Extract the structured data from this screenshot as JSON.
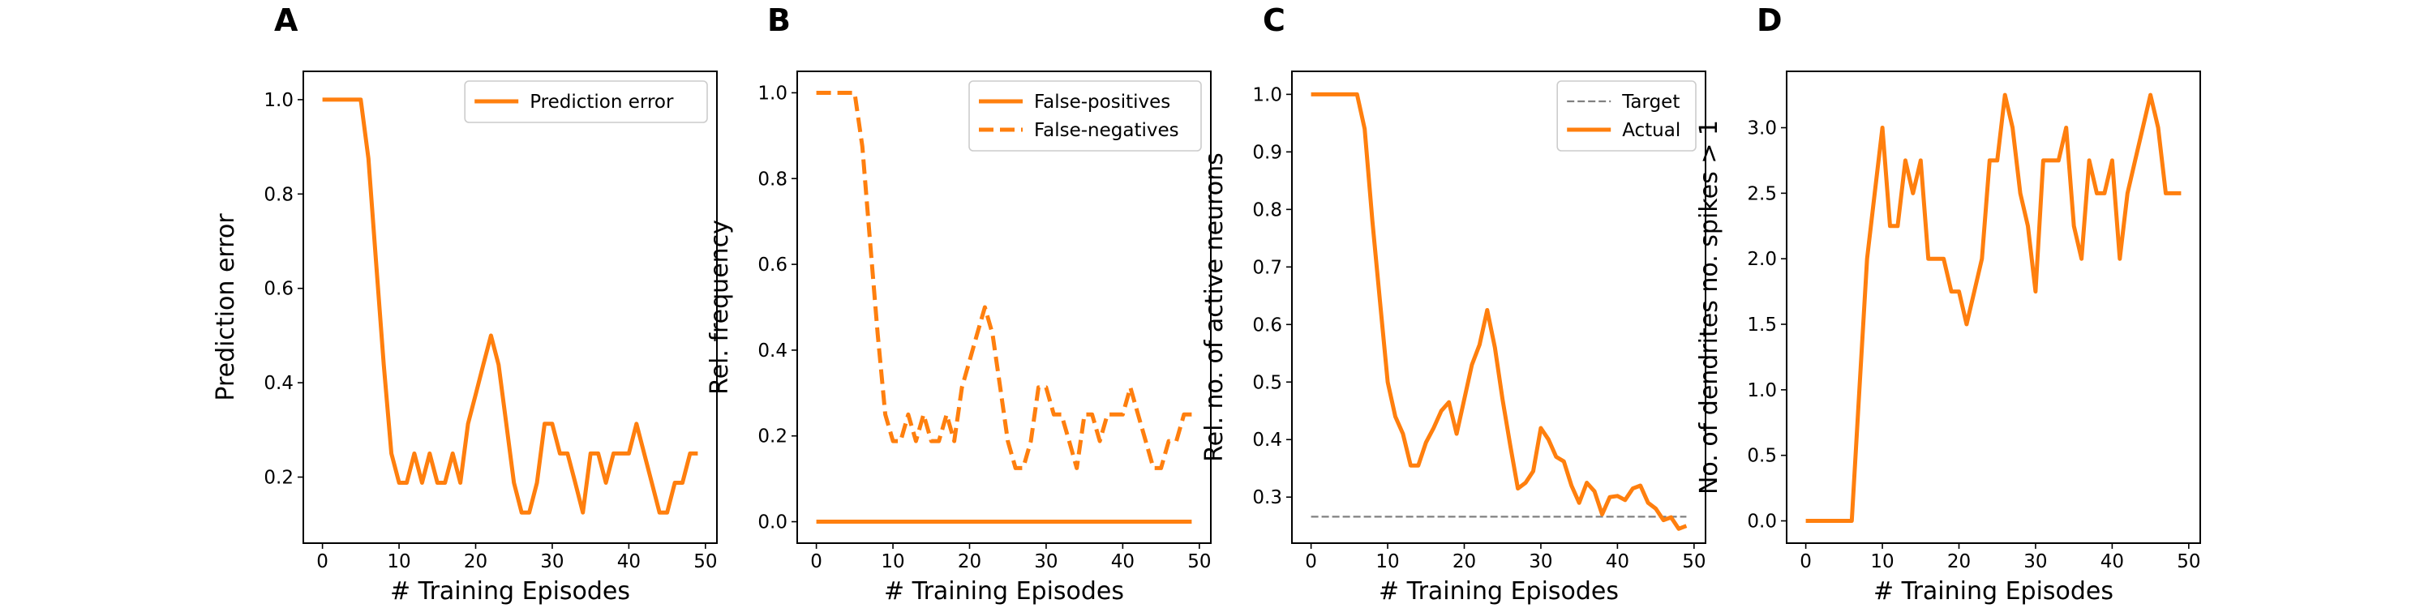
{
  "colors": {
    "series": "#ff7f0e",
    "target": "#808080"
  },
  "chart_data": [
    {
      "panel": "A",
      "type": "line",
      "xlabel": "# Training Episodes",
      "ylabel": "Prediction error",
      "xlim": [
        -2.5,
        51.5
      ],
      "ylim": [
        0.06,
        1.06
      ],
      "xticks": [
        0,
        10,
        20,
        30,
        40,
        50
      ],
      "yticks": [
        0.2,
        0.4,
        0.6,
        0.8,
        1.0
      ],
      "ytick_labels": [
        "0.2",
        "0.4",
        "0.6",
        "0.8",
        "1.0"
      ],
      "legend_position": "top-right",
      "series": [
        {
          "name": "Prediction error",
          "style": "solid",
          "x": [
            0,
            1,
            2,
            3,
            4,
            5,
            6,
            7,
            8,
            9,
            10,
            11,
            12,
            13,
            14,
            15,
            16,
            17,
            18,
            19,
            20,
            21,
            22,
            23,
            24,
            25,
            26,
            27,
            28,
            29,
            30,
            31,
            32,
            33,
            34,
            35,
            36,
            37,
            38,
            39,
            40,
            41,
            42,
            43,
            44,
            45,
            46,
            47,
            48,
            49
          ],
          "y": [
            1.0,
            1.0,
            1.0,
            1.0,
            1.0,
            1.0,
            0.875,
            0.656,
            0.438,
            0.25,
            0.188,
            0.188,
            0.25,
            0.188,
            0.25,
            0.188,
            0.188,
            0.25,
            0.188,
            0.313,
            0.375,
            0.438,
            0.5,
            0.438,
            0.313,
            0.188,
            0.125,
            0.125,
            0.188,
            0.313,
            0.313,
            0.25,
            0.25,
            0.188,
            0.125,
            0.25,
            0.25,
            0.188,
            0.25,
            0.25,
            0.25,
            0.313,
            0.25,
            0.188,
            0.125,
            0.125,
            0.188,
            0.188,
            0.25,
            0.25
          ]
        }
      ]
    },
    {
      "panel": "B",
      "type": "line",
      "xlabel": "# Training Episodes",
      "ylabel": "Rel. frequency",
      "xlim": [
        -2.5,
        51.5
      ],
      "ylim": [
        -0.05,
        1.05
      ],
      "xticks": [
        0,
        10,
        20,
        30,
        40,
        50
      ],
      "yticks": [
        0.0,
        0.2,
        0.4,
        0.6,
        0.8,
        1.0
      ],
      "ytick_labels": [
        "0.0",
        "0.2",
        "0.4",
        "0.6",
        "0.8",
        "1.0"
      ],
      "legend_position": "top-right",
      "series": [
        {
          "name": "False-positives",
          "style": "solid",
          "x": [
            0,
            49
          ],
          "y": [
            0.0,
            0.0
          ]
        },
        {
          "name": "False-negatives",
          "style": "dashed",
          "x": [
            0,
            1,
            2,
            3,
            4,
            5,
            6,
            7,
            8,
            9,
            10,
            11,
            12,
            13,
            14,
            15,
            16,
            17,
            18,
            19,
            20,
            21,
            22,
            23,
            24,
            25,
            26,
            27,
            28,
            29,
            30,
            31,
            32,
            33,
            34,
            35,
            36,
            37,
            38,
            39,
            40,
            41,
            42,
            43,
            44,
            45,
            46,
            47,
            48,
            49
          ],
          "y": [
            1.0,
            1.0,
            1.0,
            1.0,
            1.0,
            1.0,
            0.875,
            0.656,
            0.438,
            0.25,
            0.188,
            0.188,
            0.25,
            0.188,
            0.25,
            0.188,
            0.188,
            0.25,
            0.188,
            0.313,
            0.375,
            0.438,
            0.5,
            0.438,
            0.313,
            0.188,
            0.125,
            0.125,
            0.188,
            0.313,
            0.313,
            0.25,
            0.25,
            0.188,
            0.125,
            0.25,
            0.25,
            0.188,
            0.25,
            0.25,
            0.25,
            0.313,
            0.25,
            0.188,
            0.125,
            0.125,
            0.188,
            0.188,
            0.25,
            0.25
          ]
        }
      ]
    },
    {
      "panel": "C",
      "type": "line",
      "xlabel": "# Training Episodes",
      "ylabel": "Rel. no. of active neurons",
      "xlim": [
        -2.5,
        51.5
      ],
      "ylim": [
        0.22,
        1.04
      ],
      "xticks": [
        0,
        10,
        20,
        30,
        40,
        50
      ],
      "yticks": [
        0.3,
        0.4,
        0.5,
        0.6,
        0.7,
        0.8,
        0.9,
        1.0
      ],
      "ytick_labels": [
        "0.3",
        "0.4",
        "0.5",
        "0.6",
        "0.7",
        "0.8",
        "0.9",
        "1.0"
      ],
      "legend_position": "top-right",
      "series": [
        {
          "name": "Target",
          "style": "dashed-thin",
          "x": [
            0,
            49
          ],
          "y": [
            0.266,
            0.266
          ]
        },
        {
          "name": "Actual",
          "style": "solid",
          "x": [
            0,
            1,
            2,
            3,
            4,
            5,
            6,
            7,
            8,
            9,
            10,
            11,
            12,
            13,
            14,
            15,
            16,
            17,
            18,
            19,
            20,
            21,
            22,
            23,
            24,
            25,
            26,
            27,
            28,
            29,
            30,
            31,
            32,
            33,
            34,
            35,
            36,
            37,
            38,
            39,
            40,
            41,
            42,
            43,
            44,
            45,
            46,
            47,
            48,
            49
          ],
          "y": [
            1.0,
            1.0,
            1.0,
            1.0,
            1.0,
            1.0,
            1.0,
            0.94,
            0.78,
            0.64,
            0.5,
            0.44,
            0.41,
            0.355,
            0.355,
            0.395,
            0.42,
            0.45,
            0.465,
            0.41,
            0.47,
            0.53,
            0.565,
            0.625,
            0.56,
            0.47,
            0.39,
            0.315,
            0.325,
            0.345,
            0.42,
            0.4,
            0.37,
            0.362,
            0.32,
            0.29,
            0.325,
            0.31,
            0.27,
            0.3,
            0.302,
            0.295,
            0.315,
            0.32,
            0.29,
            0.28,
            0.26,
            0.265,
            0.245,
            0.25
          ]
        }
      ]
    },
    {
      "panel": "D",
      "type": "line",
      "xlabel": "# Training Episodes",
      "ylabel": "No. of dendrites no. spikes > 1",
      "xlim": [
        -2.5,
        51.5
      ],
      "ylim": [
        -0.17,
        3.43
      ],
      "xticks": [
        0,
        10,
        20,
        30,
        40,
        50
      ],
      "yticks": [
        0.0,
        0.5,
        1.0,
        1.5,
        2.0,
        2.5,
        3.0
      ],
      "ytick_labels": [
        "0.0",
        "0.5",
        "1.0",
        "1.5",
        "2.0",
        "2.5",
        "3.0"
      ],
      "series": [
        {
          "name": "",
          "style": "solid",
          "x": [
            0,
            1,
            2,
            3,
            4,
            5,
            6,
            7,
            8,
            9,
            10,
            11,
            12,
            13,
            14,
            15,
            16,
            17,
            18,
            19,
            20,
            21,
            22,
            23,
            24,
            25,
            26,
            27,
            28,
            29,
            30,
            31,
            32,
            33,
            34,
            35,
            36,
            37,
            38,
            39,
            40,
            41,
            42,
            43,
            44,
            45,
            46,
            47,
            48,
            49
          ],
          "y": [
            0,
            0,
            0,
            0,
            0,
            0,
            0,
            1.0,
            2.0,
            2.5,
            3.0,
            2.25,
            2.25,
            2.75,
            2.5,
            2.75,
            2.0,
            2.0,
            2.0,
            1.75,
            1.75,
            1.5,
            1.75,
            2.0,
            2.75,
            2.75,
            3.25,
            3.0,
            2.5,
            2.25,
            1.75,
            2.75,
            2.75,
            2.75,
            3.0,
            2.25,
            2.0,
            2.75,
            2.5,
            2.5,
            2.75,
            2.0,
            2.5,
            2.75,
            3.0,
            3.25,
            3.0,
            2.5,
            2.5,
            2.5
          ]
        }
      ]
    }
  ]
}
